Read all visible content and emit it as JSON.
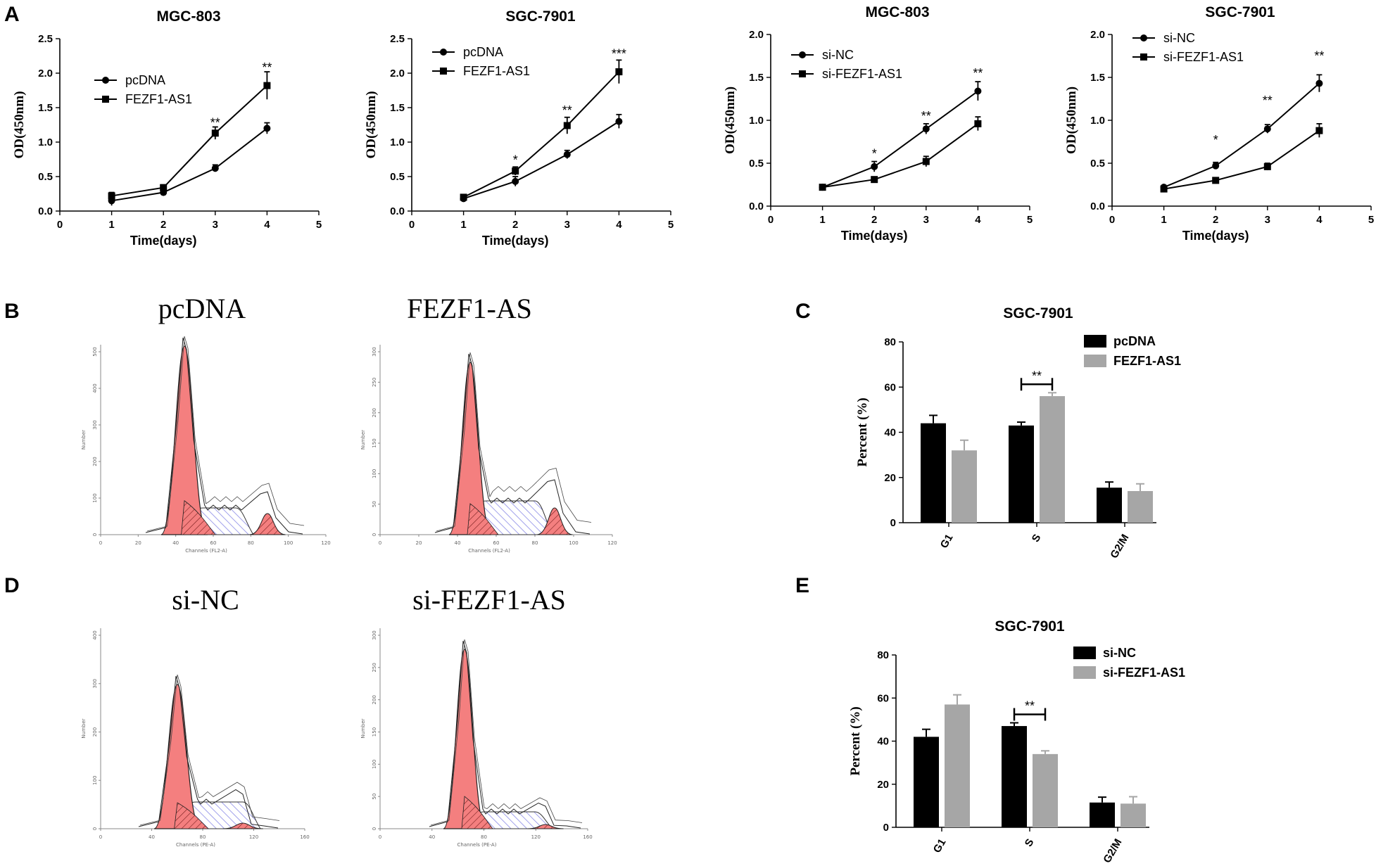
{
  "panel_letters": [
    "A",
    "B",
    "C",
    "D",
    "E"
  ],
  "colors": {
    "dark": "#000000",
    "gray": "#a6a6a6",
    "peak": "#f47f7f",
    "hatch_red": "#c04040",
    "hatch_blue": "#8a8ae6"
  },
  "chart_data": [
    {
      "type": "line",
      "title": "MGC-803",
      "xlabel": "Time(days)",
      "ylabel": "OD(450nm)",
      "xlim": [
        0,
        5
      ],
      "ylim": [
        0,
        2.5
      ],
      "xticks": [
        0,
        1,
        2,
        3,
        4,
        5
      ],
      "yticks": [
        "0.0",
        "0.5",
        "1.0",
        "1.5",
        "2.0",
        "2.5"
      ],
      "x": [
        1,
        2,
        3,
        4
      ],
      "series": [
        {
          "name": "pcDNA",
          "marker": "circle",
          "values": [
            0.15,
            0.27,
            0.62,
            1.2
          ],
          "err": [
            0.07,
            0.05,
            0.05,
            0.08
          ]
        },
        {
          "name": "FEZF1-AS1",
          "marker": "square",
          "values": [
            0.22,
            0.34,
            1.13,
            1.82
          ],
          "err": [
            0.05,
            0.04,
            0.09,
            0.2
          ]
        }
      ],
      "annotations": [
        {
          "x": 3,
          "y": 1.22,
          "text": "**"
        },
        {
          "x": 4,
          "y": 2.02,
          "text": "**"
        }
      ]
    },
    {
      "type": "line",
      "title": "SGC-7901",
      "xlabel": "Time(days)",
      "ylabel": "OD(450nm)",
      "xlim": [
        0,
        5
      ],
      "ylim": [
        0,
        2.5
      ],
      "xticks": [
        0,
        1,
        2,
        3,
        4,
        5
      ],
      "yticks": [
        "0.0",
        "0.5",
        "1.0",
        "1.5",
        "2.0",
        "2.5"
      ],
      "x": [
        1,
        2,
        3,
        4
      ],
      "series": [
        {
          "name": "pcDNA",
          "marker": "circle",
          "values": [
            0.18,
            0.43,
            0.82,
            1.3
          ],
          "err": [
            0.04,
            0.07,
            0.06,
            0.1
          ]
        },
        {
          "name": "FEZF1-AS1",
          "marker": "square",
          "values": [
            0.2,
            0.58,
            1.24,
            2.02
          ],
          "err": [
            0.03,
            0.06,
            0.12,
            0.17
          ]
        }
      ],
      "annotations": [
        {
          "x": 2,
          "y": 0.68,
          "text": "*"
        },
        {
          "x": 3,
          "y": 1.4,
          "text": "**"
        },
        {
          "x": 4,
          "y": 2.22,
          "text": "***"
        }
      ]
    },
    {
      "type": "line",
      "title": "MGC-803",
      "xlabel": "Time(days)",
      "ylabel": "OD(450nm)",
      "xlim": [
        0,
        5
      ],
      "ylim": [
        0,
        2.0
      ],
      "xticks": [
        0,
        1,
        2,
        3,
        4,
        5
      ],
      "yticks": [
        "0.0",
        "0.5",
        "1.0",
        "1.5",
        "2.0"
      ],
      "x": [
        1,
        2,
        3,
        4
      ],
      "series": [
        {
          "name": "si-NC",
          "marker": "circle",
          "values": [
            0.22,
            0.46,
            0.9,
            1.34
          ],
          "err": [
            0.02,
            0.06,
            0.06,
            0.11
          ]
        },
        {
          "name": "si-FEZF1-AS1",
          "marker": "square",
          "values": [
            0.22,
            0.31,
            0.52,
            0.96
          ],
          "err": [
            0.02,
            0.03,
            0.06,
            0.08
          ]
        }
      ],
      "annotations": [
        {
          "x": 2,
          "y": 0.56,
          "text": "*"
        },
        {
          "x": 3,
          "y": 1.0,
          "text": "**"
        },
        {
          "x": 4,
          "y": 1.5,
          "text": "**"
        }
      ]
    },
    {
      "type": "line",
      "title": "SGC-7901",
      "xlabel": "Time(days)",
      "ylabel": "OD(450nm)",
      "xlim": [
        0,
        5
      ],
      "ylim": [
        0,
        2.0
      ],
      "xticks": [
        0,
        1,
        2,
        3,
        4,
        5
      ],
      "yticks": [
        "0.0",
        "0.5",
        "1.0",
        "1.5",
        "2.0"
      ],
      "x": [
        1,
        2,
        3,
        4
      ],
      "series": [
        {
          "name": "si-NC",
          "marker": "circle",
          "values": [
            0.22,
            0.47,
            0.9,
            1.43
          ],
          "err": [
            0.02,
            0.04,
            0.05,
            0.1
          ]
        },
        {
          "name": "si-FEZF1-AS1",
          "marker": "square",
          "values": [
            0.2,
            0.3,
            0.46,
            0.88
          ],
          "err": [
            0.02,
            0.02,
            0.04,
            0.08
          ]
        }
      ],
      "annotations": [
        {
          "x": 2,
          "y": 0.72,
          "text": "*"
        },
        {
          "x": 3,
          "y": 1.18,
          "text": "**"
        },
        {
          "x": 4,
          "y": 1.7,
          "text": "**"
        }
      ]
    },
    {
      "type": "bar",
      "title": "SGC-7901",
      "ylabel": "Percent (%)",
      "ylim": [
        0,
        80
      ],
      "yticks": [
        "0",
        "20",
        "40",
        "60",
        "80"
      ],
      "categories": [
        "G1",
        "S",
        "G2/M"
      ],
      "series": [
        {
          "name": "pcDNA",
          "color": "#000000",
          "values": [
            44,
            43,
            15.5
          ],
          "err": [
            3.5,
            1.5,
            2.5
          ]
        },
        {
          "name": "FEZF1-AS1",
          "color": "#a6a6a6",
          "values": [
            32,
            56,
            14
          ],
          "err": [
            4.5,
            1.5,
            3.2
          ]
        }
      ],
      "annotations": [
        {
          "category": "S",
          "text": "**"
        }
      ]
    },
    {
      "type": "bar",
      "title": "SGC-7901",
      "ylabel": "Percent (%)",
      "ylim": [
        0,
        80
      ],
      "yticks": [
        "0",
        "20",
        "40",
        "60",
        "80"
      ],
      "categories": [
        "G1",
        "S",
        "G2/M"
      ],
      "series": [
        {
          "name": "si-NC",
          "color": "#000000",
          "values": [
            42,
            47,
            11.5
          ],
          "err": [
            3.5,
            1.5,
            2.5
          ]
        },
        {
          "name": "si-FEZF1-AS1",
          "color": "#a6a6a6",
          "values": [
            57,
            34,
            11
          ],
          "err": [
            4.5,
            1.5,
            3.2
          ]
        }
      ],
      "annotations": [
        {
          "category": "S",
          "text": "**"
        }
      ]
    }
  ],
  "flow_panels": [
    {
      "title": "pcDNA",
      "xlabel": "Channels (FL2-A)",
      "ylabel": "Number",
      "xticks": [
        "0",
        "20",
        "40",
        "60",
        "80",
        "100",
        "120"
      ],
      "yticks": [
        "0",
        "100",
        "200",
        "300",
        "400",
        "500"
      ]
    },
    {
      "title": "FEZF1-AS",
      "xlabel": "Channels (FL2-A)",
      "ylabel": "Number",
      "xticks": [
        "0",
        "20",
        "40",
        "60",
        "80",
        "100",
        "120"
      ],
      "yticks": [
        "0",
        "50",
        "100",
        "150",
        "200",
        "250",
        "300"
      ]
    },
    {
      "title": "si-NC",
      "xlabel": "Channels (PE-A)",
      "ylabel": "Number",
      "xticks": [
        "0",
        "40",
        "80",
        "120",
        "160"
      ],
      "yticks": [
        "0",
        "100",
        "200",
        "300",
        "400"
      ]
    },
    {
      "title": "si-FEZF1-AS",
      "xlabel": "Channels (PE-A)",
      "ylabel": "Number",
      "xticks": [
        "0",
        "40",
        "80",
        "120",
        "160"
      ],
      "yticks": [
        "0",
        "50",
        "100",
        "150",
        "200",
        "250",
        "300"
      ]
    }
  ]
}
